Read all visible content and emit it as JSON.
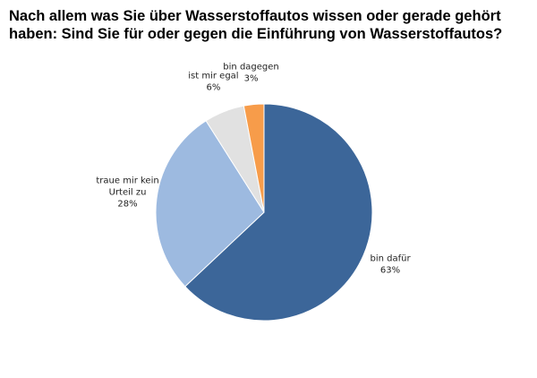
{
  "chart_data": {
    "type": "pie",
    "title": "Nach allem was Sie über Wasserstoffautos wissen oder gerade gehört haben: Sind Sie für oder gegen die Einführung von Wasserstoffautos?",
    "categories": [
      "bin dafür",
      "traue mir kein Urteil zu",
      "ist mir egal",
      "bin dagegen"
    ],
    "values": [
      63,
      28,
      6,
      3
    ],
    "value_labels": [
      "63%",
      "28%",
      "6%",
      "3%"
    ],
    "colors": [
      "#3c6699",
      "#9dbae0",
      "#e1e1e1",
      "#f79c4a"
    ]
  }
}
